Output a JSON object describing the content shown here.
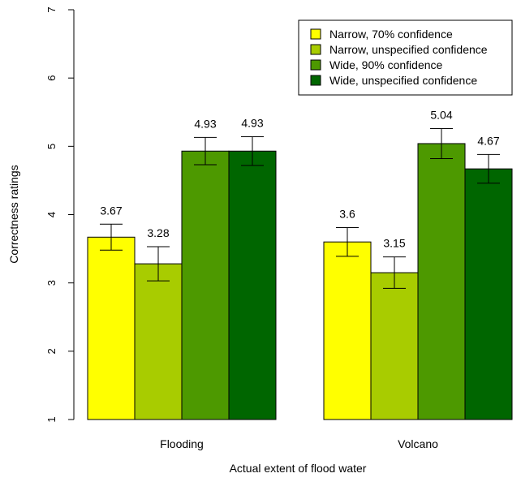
{
  "chart_data": {
    "type": "bar",
    "title": "",
    "xlabel": "Actual extent of flood water",
    "ylabel": "Correctness ratings",
    "ylim": [
      1,
      7
    ],
    "yticks": [
      "1",
      "2",
      "3",
      "4",
      "5",
      "6",
      "7"
    ],
    "categories": [
      "Flooding",
      "Volcano"
    ],
    "series": [
      {
        "name": "Narrow, 70% confidence",
        "color": "#ffff00",
        "values": [
          3.67,
          3.6
        ],
        "labels": [
          "3.67",
          "3.6"
        ],
        "err_low": [
          3.48,
          3.39
        ],
        "err_high": [
          3.86,
          3.81
        ]
      },
      {
        "name": "Narrow, unspecified confidence",
        "color": "#a8cc00",
        "values": [
          3.28,
          3.15
        ],
        "labels": [
          "3.28",
          "3.15"
        ],
        "err_low": [
          3.03,
          2.92
        ],
        "err_high": [
          3.53,
          3.38
        ]
      },
      {
        "name": "Wide, 90% confidence",
        "color": "#4d9900",
        "values": [
          4.93,
          5.04
        ],
        "labels": [
          "4.93",
          "5.04"
        ],
        "err_low": [
          4.73,
          4.82
        ],
        "err_high": [
          5.13,
          5.26
        ]
      },
      {
        "name": "Wide, unspecified confidence",
        "color": "#006600",
        "values": [
          4.93,
          4.67
        ],
        "labels": [
          "4.93",
          "4.67"
        ],
        "err_low": [
          4.72,
          4.46
        ],
        "err_high": [
          5.14,
          4.88
        ]
      }
    ],
    "legend_position": "top-right",
    "grid": false
  }
}
